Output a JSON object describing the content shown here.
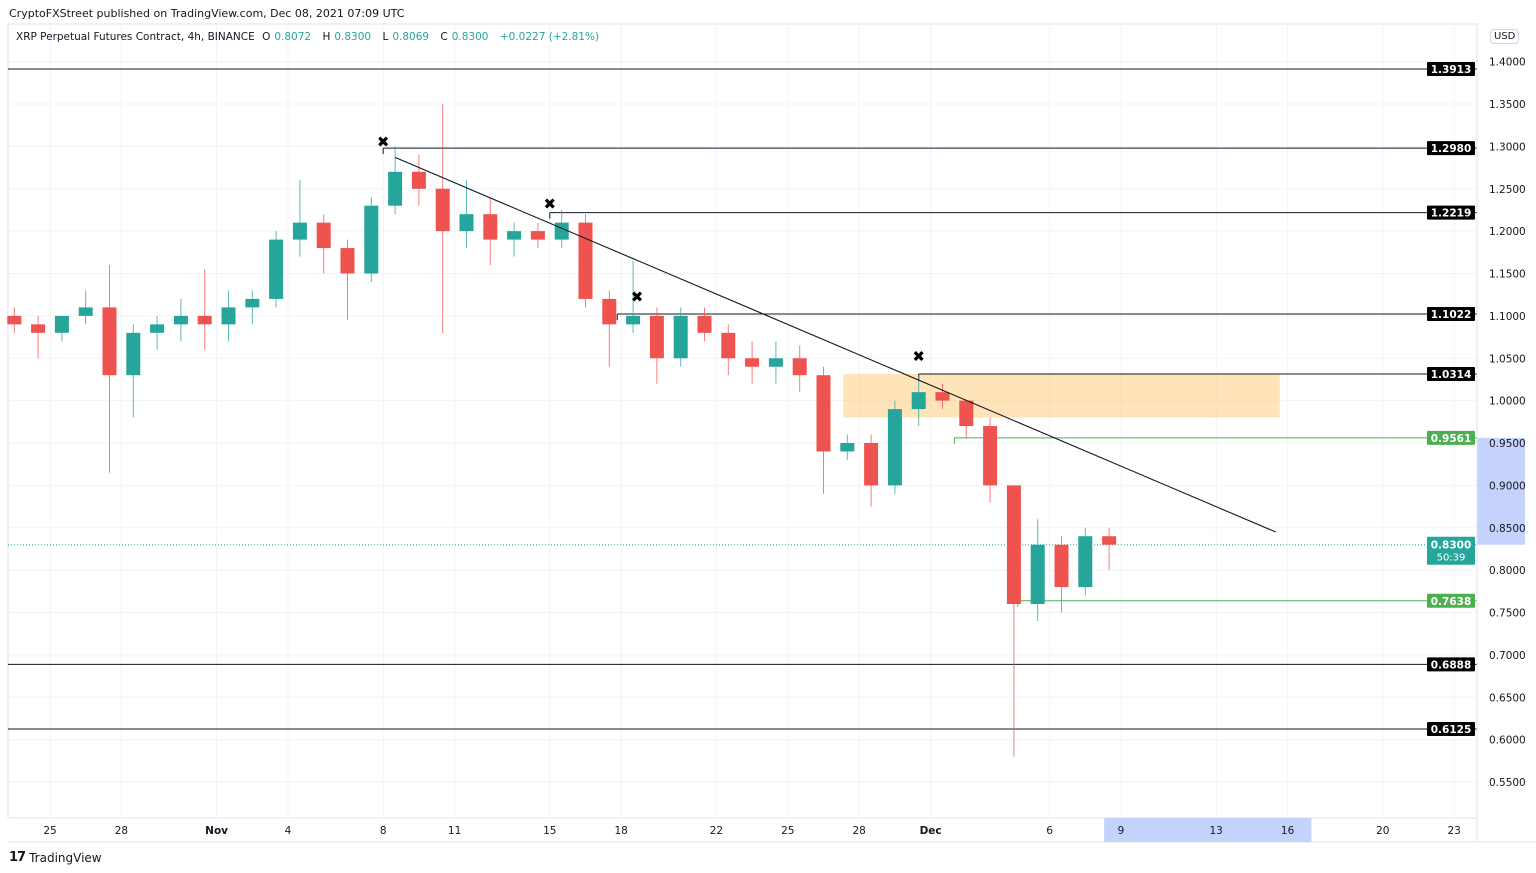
{
  "header": {
    "published": "CryptoFXStreet published on TradingView.com, Dec 08, 2021 07:09 UTC",
    "symbol": "XRP Perpetual Futures Contract, 4h, BINANCE",
    "open_label": "O",
    "open": "0.8072",
    "high_label": "H",
    "high": "0.8300",
    "low_label": "L",
    "low": "0.8069",
    "close_label": "C",
    "close": "0.8300",
    "change": "+0.0227 (+2.81%)",
    "currency": "USD"
  },
  "footer": {
    "brand": "TradingView",
    "logo_icon": "tradingview-logo-icon"
  },
  "colors": {
    "up": "#26a69a",
    "down": "#ef5350",
    "zone": "#ffcc80",
    "support": "#4caf50",
    "line": "#131722",
    "future": "#c5d3fc"
  },
  "chart_data": {
    "type": "candlestick",
    "interval": "4h (shown approximated as daily candles)",
    "yaxis_ticks": [
      "0.5500",
      "0.6000",
      "0.6500",
      "0.7000",
      "0.7500",
      "0.8000",
      "0.8500",
      "0.9000",
      "0.9500",
      "1.0000",
      "1.0500",
      "1.1000",
      "1.1500",
      "1.2000",
      "1.2500",
      "1.3000",
      "1.3500",
      "1.4000"
    ],
    "ylim": [
      0.52,
      1.45
    ],
    "xaxis_ticks": [
      {
        "date": "2021-10-25",
        "label": "25"
      },
      {
        "date": "2021-10-28",
        "label": "28"
      },
      {
        "date": "2021-11-01",
        "label": "Nov"
      },
      {
        "date": "2021-11-04",
        "label": "4"
      },
      {
        "date": "2021-11-08",
        "label": "8"
      },
      {
        "date": "2021-11-11",
        "label": "11"
      },
      {
        "date": "2021-11-15",
        "label": "15"
      },
      {
        "date": "2021-11-18",
        "label": "18"
      },
      {
        "date": "2021-11-22",
        "label": "22"
      },
      {
        "date": "2021-11-25",
        "label": "25"
      },
      {
        "date": "2021-11-28",
        "label": "28"
      },
      {
        "date": "2021-12-01",
        "label": "Dec"
      },
      {
        "date": "2021-12-06",
        "label": "6"
      },
      {
        "date": "2021-12-09",
        "label": "9"
      },
      {
        "date": "2021-12-13",
        "label": "13"
      },
      {
        "date": "2021-12-16",
        "label": "16"
      },
      {
        "date": "2021-12-20",
        "label": "20"
      },
      {
        "date": "2021-12-23",
        "label": "23"
      }
    ],
    "grid": true,
    "candles": [
      [
        "2021-10-23",
        1.1,
        1.11,
        1.08,
        1.09
      ],
      [
        "2021-10-24",
        1.09,
        1.1,
        1.05,
        1.08
      ],
      [
        "2021-10-25",
        1.08,
        1.1,
        1.07,
        1.1
      ],
      [
        "2021-10-26",
        1.1,
        1.13,
        1.09,
        1.11
      ],
      [
        "2021-10-27",
        1.11,
        1.16,
        0.915,
        1.03
      ],
      [
        "2021-10-28",
        1.03,
        1.09,
        0.98,
        1.08
      ],
      [
        "2021-10-29",
        1.08,
        1.1,
        1.06,
        1.09
      ],
      [
        "2021-10-30",
        1.09,
        1.12,
        1.07,
        1.1
      ],
      [
        "2021-10-31",
        1.1,
        1.155,
        1.06,
        1.09
      ],
      [
        "2021-11-01",
        1.09,
        1.13,
        1.07,
        1.11
      ],
      [
        "2021-11-02",
        1.11,
        1.13,
        1.09,
        1.12
      ],
      [
        "2021-11-03",
        1.12,
        1.2,
        1.11,
        1.19
      ],
      [
        "2021-11-04",
        1.19,
        1.26,
        1.17,
        1.21
      ],
      [
        "2021-11-05",
        1.21,
        1.22,
        1.15,
        1.18
      ],
      [
        "2021-11-06",
        1.18,
        1.19,
        1.095,
        1.15
      ],
      [
        "2021-11-07",
        1.15,
        1.24,
        1.14,
        1.23
      ],
      [
        "2021-11-08",
        1.23,
        1.3,
        1.22,
        1.27
      ],
      [
        "2021-11-09",
        1.27,
        1.29,
        1.23,
        1.25
      ],
      [
        "2021-11-10",
        1.25,
        1.35,
        1.08,
        1.2
      ],
      [
        "2021-11-11",
        1.2,
        1.26,
        1.18,
        1.22
      ],
      [
        "2021-11-12",
        1.22,
        1.24,
        1.16,
        1.19
      ],
      [
        "2021-11-13",
        1.19,
        1.21,
        1.17,
        1.2
      ],
      [
        "2021-11-14",
        1.2,
        1.21,
        1.18,
        1.19
      ],
      [
        "2021-11-15",
        1.19,
        1.225,
        1.18,
        1.21
      ],
      [
        "2021-11-16",
        1.21,
        1.22,
        1.11,
        1.12
      ],
      [
        "2021-11-17",
        1.12,
        1.13,
        1.04,
        1.09
      ],
      [
        "2021-11-18",
        1.09,
        1.165,
        1.08,
        1.1
      ],
      [
        "2021-11-19",
        1.1,
        1.11,
        1.02,
        1.05
      ],
      [
        "2021-11-20",
        1.05,
        1.11,
        1.04,
        1.1
      ],
      [
        "2021-11-21",
        1.1,
        1.11,
        1.07,
        1.08
      ],
      [
        "2021-11-22",
        1.08,
        1.09,
        1.03,
        1.05
      ],
      [
        "2021-11-23",
        1.05,
        1.07,
        1.02,
        1.04
      ],
      [
        "2021-11-24",
        1.04,
        1.07,
        1.02,
        1.05
      ],
      [
        "2021-11-25",
        1.05,
        1.065,
        1.01,
        1.03
      ],
      [
        "2021-11-26",
        1.03,
        1.04,
        0.89,
        0.94
      ],
      [
        "2021-11-27",
        0.94,
        0.96,
        0.93,
        0.95
      ],
      [
        "2021-11-28",
        0.95,
        0.96,
        0.875,
        0.9
      ],
      [
        "2021-11-29",
        0.9,
        1.0,
        0.89,
        0.99
      ],
      [
        "2021-11-30",
        0.99,
        1.03,
        0.97,
        1.01
      ],
      [
        "2021-12-01",
        1.01,
        1.02,
        0.99,
        1.0
      ],
      [
        "2021-12-02",
        1.0,
        1.0,
        0.955,
        0.97
      ],
      [
        "2021-12-03",
        0.97,
        0.98,
        0.88,
        0.9
      ],
      [
        "2021-12-04",
        0.9,
        0.9,
        0.58,
        0.76
      ],
      [
        "2021-12-05",
        0.76,
        0.86,
        0.74,
        0.83
      ],
      [
        "2021-12-06",
        0.83,
        0.84,
        0.75,
        0.78
      ],
      [
        "2021-12-07",
        0.78,
        0.85,
        0.77,
        0.84
      ],
      [
        "2021-12-08",
        0.84,
        0.85,
        0.8,
        0.83
      ]
    ],
    "levels": [
      {
        "price": 1.3913,
        "label": "1.3913",
        "from": null,
        "kind": "resistance"
      },
      {
        "price": 1.298,
        "label": "1.2980",
        "from": "2021-11-08T00:00",
        "kind": "resistance"
      },
      {
        "price": 1.2219,
        "label": "1.2219",
        "from": "2021-11-15T00:00",
        "kind": "resistance"
      },
      {
        "price": 1.1022,
        "label": "1.1022",
        "from": "2021-11-17T20:00",
        "kind": "resistance"
      },
      {
        "price": 1.0314,
        "label": "1.0314",
        "from": "2021-11-30T12:00",
        "kind": "resistance"
      },
      {
        "price": 0.9561,
        "label": "0.9561",
        "from": "2021-12-02T00:00",
        "kind": "support"
      },
      {
        "price": 0.7638,
        "label": "0.7638",
        "from": "2021-12-04T16:00",
        "kind": "support"
      },
      {
        "price": 0.6888,
        "label": "0.6888",
        "from": null,
        "kind": "resistance"
      },
      {
        "price": 0.6125,
        "label": "0.6125",
        "from": null,
        "kind": "resistance"
      }
    ],
    "zone": {
      "from": "2021-11-27T08:00",
      "to": "2021-12-15T16:00",
      "low": 0.98,
      "high": 1.0314
    },
    "trendline": {
      "from": [
        "2021-11-08T12:00",
        1.287
      ],
      "to": [
        "2021-12-15T12:00",
        0.845
      ]
    },
    "swing_markers": [
      [
        "2021-11-08T00:00",
        1.305
      ],
      [
        "2021-11-15T00:00",
        1.232
      ],
      [
        "2021-11-18T16:00",
        1.122
      ],
      [
        "2021-11-30T12:00",
        1.052
      ]
    ],
    "current_price": {
      "price": 0.83,
      "label": "0.8300",
      "countdown": "50:39"
    },
    "future_range": {
      "from": "2021-12-08T07:00",
      "to": "2021-12-17T00:00",
      "price_low": 0.83,
      "price_high": 0.9561
    }
  }
}
